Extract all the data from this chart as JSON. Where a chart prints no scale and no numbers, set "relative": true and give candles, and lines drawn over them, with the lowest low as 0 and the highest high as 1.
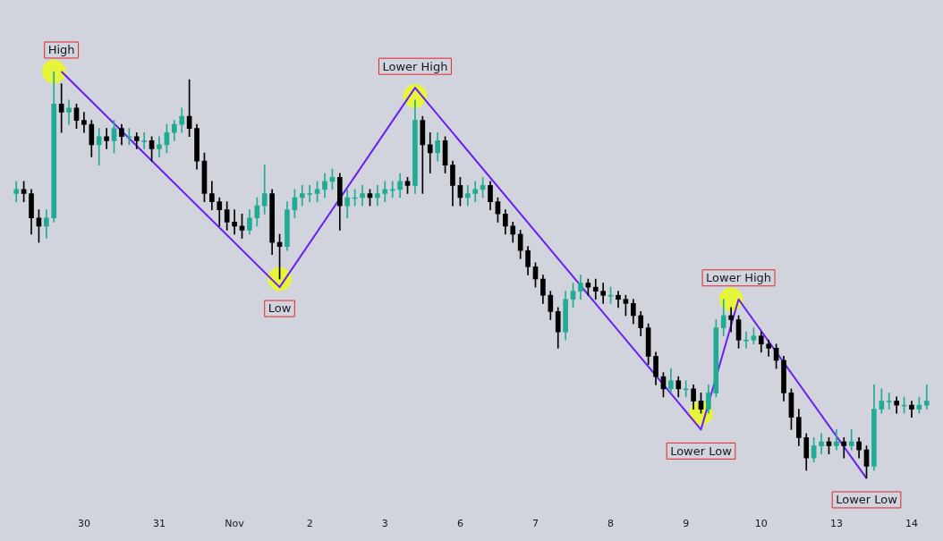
{
  "chart_data": {
    "type": "candlestick",
    "relative": true,
    "categories": [
      null,
      null,
      null,
      null,
      null,
      null,
      null,
      null,
      null,
      "30",
      null,
      null,
      null,
      null,
      null,
      null,
      null,
      null,
      null,
      "31",
      null,
      null,
      null,
      null,
      null,
      null,
      null,
      null,
      null,
      "Nov",
      null,
      null,
      null,
      null,
      null,
      null,
      null,
      null,
      null,
      "2",
      null,
      null,
      null,
      null,
      null,
      null,
      null,
      null,
      null,
      "3",
      null,
      null,
      null,
      null,
      null,
      null,
      null,
      null,
      null,
      "6",
      null,
      null,
      null,
      null,
      null,
      null,
      null,
      null,
      null,
      "7",
      null,
      null,
      null,
      null,
      null,
      null,
      null,
      null,
      null,
      "8",
      null,
      null,
      null,
      null,
      null,
      null,
      null,
      null,
      null,
      "9",
      null,
      null,
      null,
      null,
      null,
      null,
      null,
      null,
      null,
      "10",
      null,
      null,
      null,
      null,
      null,
      null,
      null,
      null,
      null,
      "13",
      null,
      null,
      null,
      null,
      null,
      null,
      null,
      null,
      null,
      "14",
      null,
      null
    ],
    "ohlc": [
      [
        0.7,
        0.73,
        0.68,
        0.71
      ],
      [
        0.71,
        0.73,
        0.68,
        0.7
      ],
      [
        0.7,
        0.71,
        0.6,
        0.64
      ],
      [
        0.64,
        0.66,
        0.58,
        0.62
      ],
      [
        0.62,
        0.66,
        0.59,
        0.64
      ],
      [
        0.64,
        1.0,
        0.63,
        0.92
      ],
      [
        0.92,
        0.97,
        0.85,
        0.9
      ],
      [
        0.9,
        0.93,
        0.87,
        0.91
      ],
      [
        0.91,
        0.92,
        0.86,
        0.88
      ],
      [
        0.88,
        0.9,
        0.85,
        0.87
      ],
      [
        0.87,
        0.88,
        0.79,
        0.82
      ],
      [
        0.82,
        0.86,
        0.77,
        0.84
      ],
      [
        0.84,
        0.86,
        0.81,
        0.83
      ],
      [
        0.83,
        0.88,
        0.8,
        0.86
      ],
      [
        0.86,
        0.87,
        0.82,
        0.84
      ],
      [
        0.84,
        0.86,
        0.82,
        0.84
      ],
      [
        0.84,
        0.85,
        0.81,
        0.83
      ],
      [
        0.83,
        0.85,
        0.81,
        0.83
      ],
      [
        0.83,
        0.84,
        0.78,
        0.81
      ],
      [
        0.81,
        0.84,
        0.79,
        0.82
      ],
      [
        0.82,
        0.87,
        0.8,
        0.85
      ],
      [
        0.85,
        0.88,
        0.83,
        0.87
      ],
      [
        0.87,
        0.91,
        0.85,
        0.89
      ],
      [
        0.89,
        0.98,
        0.84,
        0.86
      ],
      [
        0.86,
        0.87,
        0.76,
        0.78
      ],
      [
        0.78,
        0.8,
        0.68,
        0.7
      ],
      [
        0.7,
        0.73,
        0.66,
        0.68
      ],
      [
        0.68,
        0.69,
        0.62,
        0.66
      ],
      [
        0.66,
        0.68,
        0.61,
        0.63
      ],
      [
        0.63,
        0.66,
        0.6,
        0.62
      ],
      [
        0.62,
        0.65,
        0.59,
        0.61
      ],
      [
        0.61,
        0.66,
        0.6,
        0.64
      ],
      [
        0.64,
        0.69,
        0.62,
        0.67
      ],
      [
        0.67,
        0.77,
        0.65,
        0.7
      ],
      [
        0.7,
        0.71,
        0.55,
        0.58
      ],
      [
        0.58,
        0.6,
        0.49,
        0.57
      ],
      [
        0.57,
        0.68,
        0.56,
        0.66
      ],
      [
        0.66,
        0.71,
        0.64,
        0.69
      ],
      [
        0.69,
        0.72,
        0.67,
        0.7
      ],
      [
        0.7,
        0.72,
        0.68,
        0.7
      ],
      [
        0.7,
        0.73,
        0.68,
        0.71
      ],
      [
        0.71,
        0.75,
        0.69,
        0.73
      ],
      [
        0.73,
        0.76,
        0.71,
        0.74
      ],
      [
        0.74,
        0.75,
        0.61,
        0.67
      ],
      [
        0.67,
        0.71,
        0.64,
        0.69
      ],
      [
        0.69,
        0.71,
        0.67,
        0.69
      ],
      [
        0.69,
        0.72,
        0.67,
        0.7
      ],
      [
        0.7,
        0.71,
        0.67,
        0.69
      ],
      [
        0.69,
        0.72,
        0.67,
        0.7
      ],
      [
        0.7,
        0.73,
        0.68,
        0.71
      ],
      [
        0.71,
        0.73,
        0.69,
        0.71
      ],
      [
        0.71,
        0.75,
        0.69,
        0.73
      ],
      [
        0.73,
        0.74,
        0.7,
        0.72
      ],
      [
        0.72,
        0.93,
        0.7,
        0.88
      ],
      [
        0.88,
        0.89,
        0.7,
        0.82
      ],
      [
        0.82,
        0.85,
        0.75,
        0.8
      ],
      [
        0.8,
        0.85,
        0.78,
        0.83
      ],
      [
        0.83,
        0.84,
        0.75,
        0.77
      ],
      [
        0.77,
        0.78,
        0.67,
        0.72
      ],
      [
        0.72,
        0.74,
        0.67,
        0.69
      ],
      [
        0.69,
        0.72,
        0.67,
        0.7
      ],
      [
        0.7,
        0.73,
        0.68,
        0.71
      ],
      [
        0.71,
        0.74,
        0.69,
        0.72
      ],
      [
        0.72,
        0.73,
        0.66,
        0.68
      ],
      [
        0.68,
        0.69,
        0.63,
        0.65
      ],
      [
        0.65,
        0.66,
        0.6,
        0.62
      ],
      [
        0.62,
        0.63,
        0.58,
        0.6
      ],
      [
        0.6,
        0.61,
        0.54,
        0.56
      ],
      [
        0.56,
        0.57,
        0.5,
        0.52
      ],
      [
        0.52,
        0.53,
        0.47,
        0.49
      ],
      [
        0.49,
        0.5,
        0.43,
        0.45
      ],
      [
        0.45,
        0.46,
        0.39,
        0.41
      ],
      [
        0.41,
        0.42,
        0.32,
        0.36
      ],
      [
        0.36,
        0.46,
        0.34,
        0.44
      ],
      [
        0.44,
        0.48,
        0.42,
        0.46
      ],
      [
        0.46,
        0.5,
        0.44,
        0.48
      ],
      [
        0.48,
        0.49,
        0.45,
        0.47
      ],
      [
        0.47,
        0.49,
        0.44,
        0.46
      ],
      [
        0.46,
        0.48,
        0.43,
        0.45
      ],
      [
        0.45,
        0.47,
        0.43,
        0.45
      ],
      [
        0.45,
        0.46,
        0.42,
        0.44
      ],
      [
        0.44,
        0.45,
        0.4,
        0.43
      ],
      [
        0.43,
        0.44,
        0.38,
        0.4
      ],
      [
        0.4,
        0.41,
        0.35,
        0.37
      ],
      [
        0.37,
        0.38,
        0.28,
        0.3
      ],
      [
        0.3,
        0.31,
        0.23,
        0.25
      ],
      [
        0.25,
        0.26,
        0.2,
        0.22
      ],
      [
        0.22,
        0.27,
        0.21,
        0.24
      ],
      [
        0.24,
        0.25,
        0.2,
        0.22
      ],
      [
        0.22,
        0.24,
        0.2,
        0.22
      ],
      [
        0.22,
        0.23,
        0.17,
        0.19
      ],
      [
        0.19,
        0.21,
        0.16,
        0.17
      ],
      [
        0.17,
        0.23,
        0.16,
        0.21
      ],
      [
        0.21,
        0.39,
        0.2,
        0.37
      ],
      [
        0.37,
        0.44,
        0.35,
        0.4
      ],
      [
        0.4,
        0.42,
        0.36,
        0.39
      ],
      [
        0.39,
        0.4,
        0.32,
        0.34
      ],
      [
        0.34,
        0.36,
        0.32,
        0.34
      ],
      [
        0.34,
        0.37,
        0.33,
        0.35
      ],
      [
        0.35,
        0.36,
        0.31,
        0.33
      ],
      [
        0.33,
        0.34,
        0.3,
        0.32
      ],
      [
        0.32,
        0.33,
        0.27,
        0.29
      ],
      [
        0.29,
        0.3,
        0.19,
        0.21
      ],
      [
        0.21,
        0.22,
        0.12,
        0.15
      ],
      [
        0.15,
        0.17,
        0.08,
        0.1
      ],
      [
        0.1,
        0.11,
        0.02,
        0.05
      ],
      [
        0.05,
        0.1,
        0.04,
        0.08
      ],
      [
        0.08,
        0.11,
        0.06,
        0.09
      ],
      [
        0.09,
        0.1,
        0.06,
        0.08
      ],
      [
        0.08,
        0.12,
        0.07,
        0.09
      ],
      [
        0.09,
        0.1,
        0.05,
        0.08
      ],
      [
        0.08,
        0.12,
        0.07,
        0.09
      ],
      [
        0.09,
        0.1,
        0.05,
        0.07
      ],
      [
        0.07,
        0.08,
        0.0,
        0.03
      ],
      [
        0.03,
        0.23,
        0.02,
        0.17
      ],
      [
        0.17,
        0.22,
        0.16,
        0.19
      ],
      [
        0.19,
        0.21,
        0.17,
        0.19
      ],
      [
        0.19,
        0.2,
        0.16,
        0.18
      ],
      [
        0.18,
        0.2,
        0.16,
        0.18
      ],
      [
        0.18,
        0.19,
        0.15,
        0.17
      ],
      [
        0.17,
        0.2,
        0.16,
        0.18
      ],
      [
        0.18,
        0.23,
        0.17,
        0.19
      ]
    ],
    "colors": [
      "#22ab94",
      "#000000",
      "#000000",
      "#000000",
      "#22ab94",
      "#22ab94",
      "#000000",
      "#22ab94",
      "#000000",
      "#000000",
      "#000000",
      "#22ab94",
      "#000000",
      "#22ab94",
      "#000000",
      "#22ab94",
      "#000000",
      "#22ab94",
      "#000000",
      "#22ab94",
      "#22ab94",
      "#22ab94",
      "#22ab94",
      "#000000",
      "#000000",
      "#000000",
      "#000000",
      "#000000",
      "#000000",
      "#000000",
      "#000000",
      "#22ab94",
      "#22ab94",
      "#22ab94",
      "#000000",
      "#000000",
      "#22ab94",
      "#22ab94",
      "#22ab94",
      "#22ab94",
      "#22ab94",
      "#22ab94",
      "#22ab94",
      "#000000",
      "#22ab94",
      "#22ab94",
      "#22ab94",
      "#000000",
      "#22ab94",
      "#22ab94",
      "#22ab94",
      "#22ab94",
      "#000000",
      "#22ab94",
      "#000000",
      "#000000",
      "#22ab94",
      "#000000",
      "#000000",
      "#000000",
      "#22ab94",
      "#22ab94",
      "#22ab94",
      "#000000",
      "#000000",
      "#000000",
      "#000000",
      "#000000",
      "#000000",
      "#000000",
      "#000000",
      "#000000",
      "#000000",
      "#22ab94",
      "#22ab94",
      "#22ab94",
      "#000000",
      "#000000",
      "#000000",
      "#22ab94",
      "#000000",
      "#000000",
      "#000000",
      "#000000",
      "#000000",
      "#000000",
      "#000000",
      "#22ab94",
      "#000000",
      "#22ab94",
      "#000000",
      "#000000",
      "#22ab94",
      "#22ab94",
      "#22ab94",
      "#000000",
      "#000000",
      "#22ab94",
      "#22ab94",
      "#000000",
      "#000000",
      "#000000",
      "#000000",
      "#000000",
      "#000000",
      "#000000",
      "#22ab94",
      "#22ab94",
      "#000000",
      "#22ab94",
      "#000000",
      "#22ab94",
      "#000000",
      "#000000",
      "#22ab94",
      "#22ab94",
      "#22ab94",
      "#000000",
      "#22ab94",
      "#000000",
      "#22ab94",
      "#22ab94"
    ],
    "series": [
      {
        "type": "scatter",
        "color": "#e6f53c",
        "marker": "circle",
        "values": [
          null,
          null,
          null,
          null,
          null,
          1.0,
          null,
          null,
          null,
          null,
          null,
          null,
          null,
          null,
          null,
          null,
          null,
          null,
          null,
          null,
          null,
          null,
          null,
          null,
          null,
          null,
          null,
          null,
          null,
          null,
          null,
          null,
          null,
          null,
          null,
          0.49,
          null,
          null,
          null,
          null,
          null,
          null,
          null,
          null,
          null,
          null,
          null,
          null,
          null,
          null,
          null,
          null,
          null,
          0.94,
          null,
          null,
          null,
          null,
          null,
          null,
          null,
          null,
          null,
          null,
          null,
          null,
          null,
          null,
          null,
          null,
          null,
          null,
          null,
          null,
          null,
          null,
          null,
          null,
          null,
          null,
          null,
          null,
          null,
          null,
          null,
          null,
          null,
          null,
          null,
          null,
          null,
          0.16,
          null,
          null,
          null,
          0.44,
          null,
          null,
          null,
          null,
          null,
          null,
          null,
          null,
          null,
          null,
          null,
          null,
          null,
          null,
          null,
          null,
          null,
          null,
          null,
          null,
          null,
          null,
          null,
          null,
          null,
          null
        ]
      },
      {
        "type": "line",
        "color": "#6a1df5",
        "line_style": "solid",
        "values": [
          null,
          null,
          null,
          null,
          null,
          null,
          1.0,
          null,
          null,
          null,
          null,
          null,
          null,
          null,
          null,
          null,
          null,
          null,
          null,
          null,
          null,
          null,
          null,
          null,
          null,
          null,
          null,
          null,
          null,
          null,
          null,
          null,
          null,
          null,
          null,
          0.47,
          null,
          null,
          null,
          null,
          null,
          null,
          null,
          null,
          null,
          null,
          null,
          null,
          null,
          null,
          null,
          null,
          null,
          0.96,
          null,
          null,
          null,
          null,
          null,
          null,
          null,
          null,
          null,
          null,
          null,
          null,
          null,
          null,
          null,
          null,
          null,
          null,
          null,
          null,
          null,
          null,
          null,
          null,
          null,
          null,
          null,
          null,
          null,
          null,
          null,
          null,
          null,
          null,
          null,
          null,
          null,
          0.12,
          null,
          null,
          null,
          null,
          0.44,
          null,
          null,
          null,
          null,
          null,
          null,
          null,
          null,
          null,
          null,
          null,
          null,
          null,
          null,
          null,
          null,
          0.0,
          null,
          null,
          null,
          null,
          null,
          null,
          null,
          null
        ]
      }
    ],
    "annotations": [
      "High",
      "Low",
      "Lower High",
      "Lower Low",
      "Lower High",
      "Lower Low"
    ]
  }
}
